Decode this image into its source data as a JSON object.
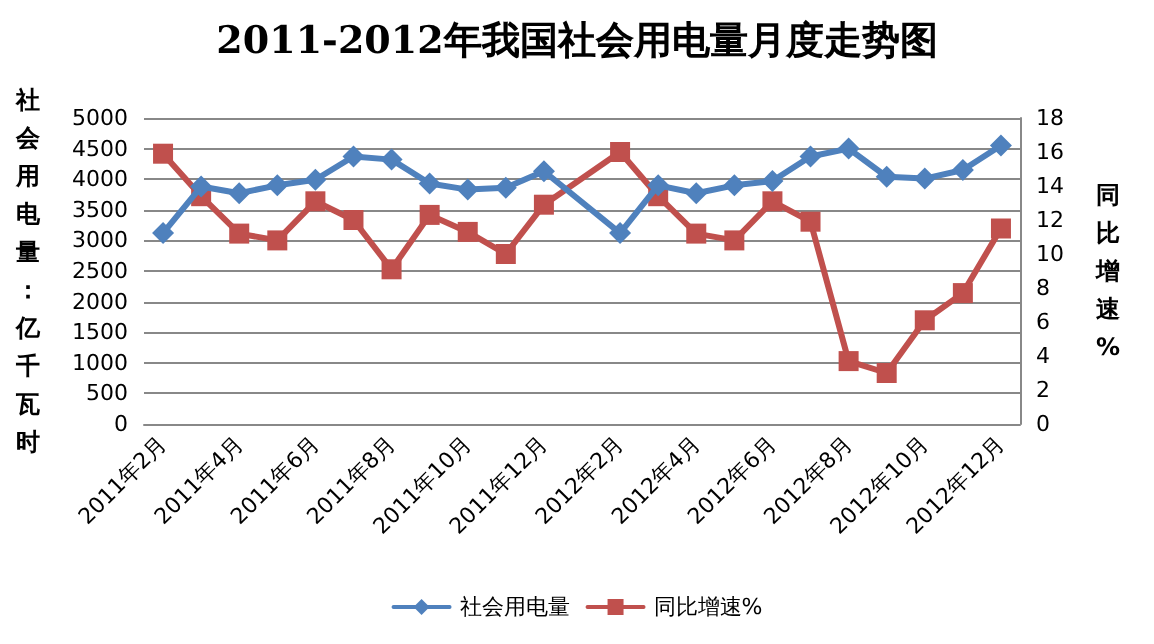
{
  "chart_data": {
    "type": "line",
    "title": "2011-2012年我国社会用电量月度走势图",
    "ylabel": "社会用电量：亿千瓦时",
    "y2label": "同比增速%",
    "categories": [
      "2011年2月",
      null,
      "2011年4月",
      null,
      "2011年6月",
      null,
      "2011年8月",
      null,
      "2011年10月",
      null,
      "2011年12月",
      null,
      "2012年2月",
      null,
      "2012年4月",
      null,
      "2012年6月",
      null,
      "2012年8月",
      null,
      "2012年10月",
      null,
      "2012年12月"
    ],
    "series": [
      {
        "name": "社会用电量",
        "color": "#4f81bd",
        "marker": "diamond",
        "values": [
          3120,
          3880,
          3770,
          3900,
          3990,
          4370,
          4320,
          3930,
          3830,
          3860,
          4130,
          null,
          3120,
          3900,
          3770,
          3900,
          3970,
          4370,
          4500,
          4040,
          4010,
          4150,
          4550
        ]
      },
      {
        "name": "同比增速%",
        "color": "#c0504d",
        "marker": "square",
        "axis": "y2",
        "values": [
          15.9,
          13.4,
          11.2,
          10.8,
          13.1,
          12.0,
          9.1,
          12.3,
          11.3,
          10.0,
          12.9,
          null,
          16.0,
          13.4,
          11.2,
          10.8,
          13.1,
          11.9,
          3.7,
          3.0,
          6.1,
          7.7,
          11.5
        ]
      }
    ],
    "ylim": [
      0,
      5000
    ],
    "yticks": [
      0,
      500,
      1000,
      1500,
      2000,
      2500,
      3000,
      3500,
      4000,
      4500,
      5000
    ],
    "y2lim": [
      0,
      18
    ],
    "y2ticks": [
      0,
      2,
      4,
      6,
      8,
      10,
      12,
      14,
      16,
      18
    ],
    "grid": "y",
    "legend": "bottom",
    "line_style": "solid"
  }
}
